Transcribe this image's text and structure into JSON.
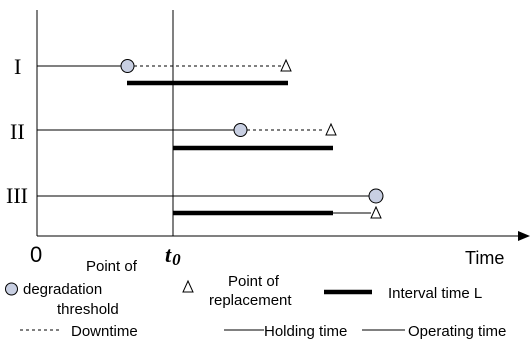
{
  "rows": [
    {
      "label": "I"
    },
    {
      "label": "II"
    },
    {
      "label": "III"
    }
  ],
  "axis": {
    "origin_label": "0",
    "t0_main": "t",
    "t0_sub": "0",
    "time_label": "Time"
  },
  "legend": {
    "degradation_line1": "Point of",
    "degradation_line2": "degradation",
    "degradation_line3": "threshold",
    "replacement_line1": "Point of",
    "replacement_line2": "replacement",
    "interval": "Interval time L",
    "downtime": "Downtime",
    "holding": "Holding time",
    "operating": "Operating time"
  },
  "icons": {
    "degradation": "circle-icon",
    "replacement": "triangle-icon",
    "interval": "thick-bar-icon"
  }
}
